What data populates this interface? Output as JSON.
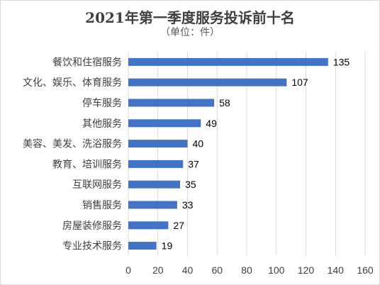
{
  "chart_data": {
    "type": "bar",
    "orientation": "horizontal",
    "title": "2021年第一季度服务投诉前十名",
    "subtitle": "（单位：件）",
    "categories": [
      "餐饮和住宿服务",
      "文化、娱乐、体育服务",
      "停车服务",
      "其他服务",
      "美容、美发、洗浴服务",
      "教育、培训服务",
      "互联网服务",
      "销售服务",
      "房屋装修服务",
      "专业技术服务"
    ],
    "values": [
      135,
      107,
      58,
      49,
      40,
      37,
      35,
      33,
      27,
      19
    ],
    "xlim": [
      0,
      160
    ],
    "xticks": [
      0,
      20,
      40,
      60,
      80,
      100,
      120,
      140,
      160
    ],
    "grid": "vertical",
    "legend": "none",
    "bar_color": "#4472C4",
    "data_labels": true
  }
}
